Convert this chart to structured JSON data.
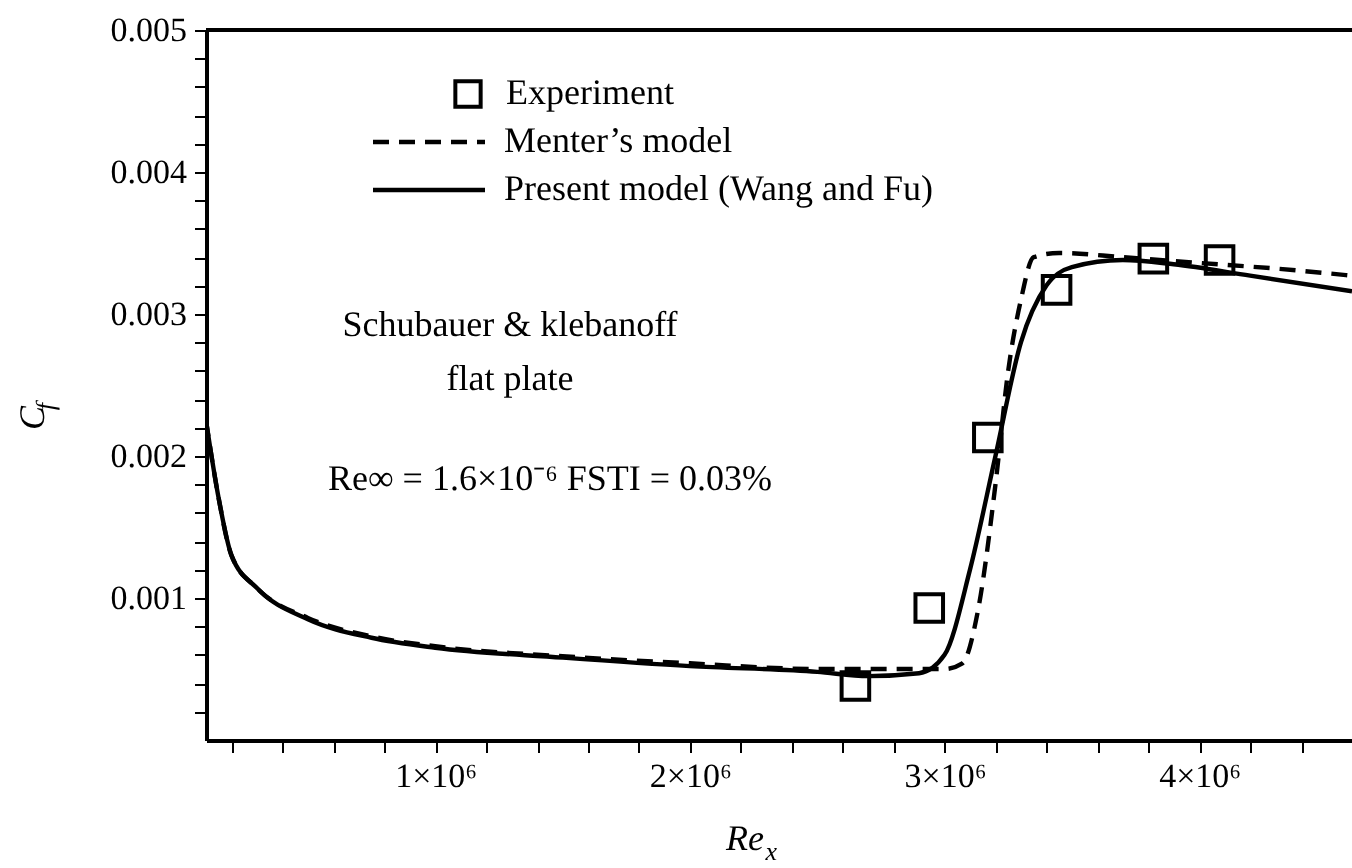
{
  "chart_data": {
    "type": "line",
    "xlabel": "Re$_{x}$",
    "ylabel": "C$_{f}$",
    "xlim": [
      100000,
      4600000
    ],
    "ylim": [
      0,
      0.005
    ],
    "xticks": [
      {
        "value": 200000,
        "label": null
      },
      {
        "value": 400000,
        "label": null
      },
      {
        "value": 600000,
        "label": null
      },
      {
        "value": 800000,
        "label": null
      },
      {
        "value": 1000000,
        "label": "1×10⁶"
      },
      {
        "value": 1200000,
        "label": null
      },
      {
        "value": 1400000,
        "label": null
      },
      {
        "value": 1600000,
        "label": null
      },
      {
        "value": 1800000,
        "label": null
      },
      {
        "value": 2000000,
        "label": "2×10⁶"
      },
      {
        "value": 2200000,
        "label": null
      },
      {
        "value": 2400000,
        "label": null
      },
      {
        "value": 2600000,
        "label": null
      },
      {
        "value": 2800000,
        "label": null
      },
      {
        "value": 3000000,
        "label": "3×10⁶"
      },
      {
        "value": 3200000,
        "label": null
      },
      {
        "value": 3400000,
        "label": null
      },
      {
        "value": 3600000,
        "label": null
      },
      {
        "value": 3800000,
        "label": null
      },
      {
        "value": 4000000,
        "label": "4×10⁶"
      },
      {
        "value": 4200000,
        "label": null
      },
      {
        "value": 4400000,
        "label": null
      }
    ],
    "yticks": [
      {
        "value": 0.0002,
        "label": null
      },
      {
        "value": 0.0004,
        "label": null
      },
      {
        "value": 0.0006,
        "label": null
      },
      {
        "value": 0.0008,
        "label": null
      },
      0.001,
      {
        "value": 0.0012,
        "label": null
      },
      {
        "value": 0.0014,
        "label": null
      },
      {
        "value": 0.0016,
        "label": null
      },
      {
        "value": 0.0018,
        "label": null
      },
      0.002,
      {
        "value": 0.0022,
        "label": null
      },
      {
        "value": 0.0024,
        "label": null
      },
      {
        "value": 0.0026,
        "label": null
      },
      {
        "value": 0.0028,
        "label": null
      },
      0.003,
      {
        "value": 0.0032,
        "label": null
      },
      {
        "value": 0.0034,
        "label": null
      },
      {
        "value": 0.0036,
        "label": null
      },
      {
        "value": 0.0038,
        "label": null
      },
      0.004,
      {
        "value": 0.0042,
        "label": null
      },
      {
        "value": 0.0044,
        "label": null
      },
      {
        "value": 0.0046,
        "label": null
      },
      {
        "value": 0.0048,
        "label": null
      },
      0.005
    ],
    "grid": false,
    "legend": "top",
    "series": [
      {
        "name": "Experiment",
        "type": "scatter",
        "marker": "square",
        "color": "#000000",
        "x": [
          2650000,
          2940000,
          3170000,
          3440000,
          3820000,
          4080000
        ],
        "values": [
          0.00038,
          0.00093,
          0.00213,
          0.00317,
          0.00339,
          0.00338
        ]
      },
      {
        "name": "Menter’s model",
        "type": "line",
        "line_style": "dashed",
        "color": "#000000",
        "x": [
          100000,
          150000,
          200000,
          300000,
          500000,
          750000,
          1000000,
          1500000,
          2000000,
          2500000,
          2900000,
          3000000,
          3070000,
          3130000,
          3200000,
          3250000,
          3300000,
          3350000,
          3450000,
          3700000,
          4000000,
          4300000,
          4600000
        ],
        "values": [
          0.00225,
          0.0017,
          0.0013,
          0.00107,
          0.00086,
          0.00073,
          0.00066,
          0.00059,
          0.00054,
          0.0005,
          0.0005,
          0.0005,
          0.00054,
          0.0009,
          0.0018,
          0.0026,
          0.0031,
          0.0034,
          0.00343,
          0.0034,
          0.00336,
          0.00332,
          0.00327
        ]
      },
      {
        "name": "Present model (Wang and Fu)",
        "type": "line",
        "line_style": "solid",
        "color": "#000000",
        "x": [
          100000,
          150000,
          200000,
          300000,
          500000,
          750000,
          1000000,
          1500000,
          2000000,
          2500000,
          2700000,
          2900000,
          3000000,
          3100000,
          3200000,
          3300000,
          3400000,
          3500000,
          3700000,
          3900000,
          4200000,
          4600000
        ],
        "values": [
          0.00225,
          0.0017,
          0.0013,
          0.00107,
          0.00085,
          0.00072,
          0.00065,
          0.00058,
          0.00052,
          0.00048,
          0.00045,
          0.00047,
          0.0006,
          0.0012,
          0.002,
          0.0028,
          0.0032,
          0.00333,
          0.00338,
          0.00335,
          0.00327,
          0.00316
        ]
      }
    ],
    "annotations": [
      "Schubauer & klebanoff\nflat plate",
      "Re∞ = 1.6×10⁻⁶   FSTI = 0.03%"
    ]
  }
}
